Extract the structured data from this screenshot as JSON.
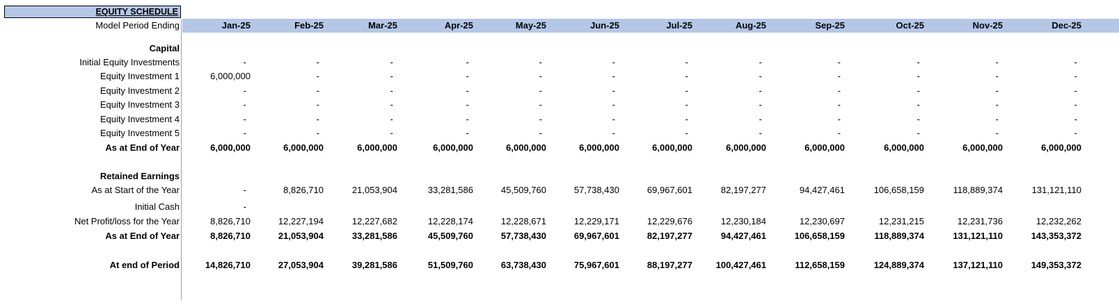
{
  "sheet": {
    "title": "EQUITY SCHEDULE",
    "header_label": "Model Period Ending",
    "months": [
      "Jan-25",
      "Feb-25",
      "Mar-25",
      "Apr-25",
      "May-25",
      "Jun-25",
      "Jul-25",
      "Aug-25",
      "Sep-25",
      "Oct-25",
      "Nov-25",
      "Dec-25"
    ],
    "capital_heading": "Capital",
    "rows": {
      "initial_equity": {
        "label": "Initial Equity Investments",
        "values": [
          "-",
          "-",
          "-",
          "-",
          "-",
          "-",
          "-",
          "-",
          "-",
          "-",
          "-",
          "-"
        ]
      },
      "equity1": {
        "label": "Equity Investment 1",
        "values": [
          "6,000,000",
          "-",
          "-",
          "-",
          "-",
          "-",
          "-",
          "-",
          "-",
          "-",
          "-",
          "-"
        ]
      },
      "equity2": {
        "label": "Equity Investment 2",
        "values": [
          "-",
          "-",
          "-",
          "-",
          "-",
          "-",
          "-",
          "-",
          "-",
          "-",
          "-",
          "-"
        ]
      },
      "equity3": {
        "label": "Equity Investment 3",
        "values": [
          "-",
          "-",
          "-",
          "-",
          "-",
          "-",
          "-",
          "-",
          "-",
          "-",
          "-",
          "-"
        ]
      },
      "equity4": {
        "label": "Equity Investment 4",
        "values": [
          "-",
          "-",
          "-",
          "-",
          "-",
          "-",
          "-",
          "-",
          "-",
          "-",
          "-",
          "-"
        ]
      },
      "equity5": {
        "label": "Equity Investment 5",
        "values": [
          "-",
          "-",
          "-",
          "-",
          "-",
          "-",
          "-",
          "-",
          "-",
          "-",
          "-",
          "-"
        ]
      },
      "capital_end": {
        "label": "As at End of Year",
        "values": [
          "6,000,000",
          "6,000,000",
          "6,000,000",
          "6,000,000",
          "6,000,000",
          "6,000,000",
          "6,000,000",
          "6,000,000",
          "6,000,000",
          "6,000,000",
          "6,000,000",
          "6,000,000"
        ]
      },
      "re_start": {
        "label": "As at Start of the Year",
        "values": [
          "-",
          "8,826,710",
          "21,053,904",
          "33,281,586",
          "45,509,760",
          "57,738,430",
          "69,967,601",
          "82,197,277",
          "94,427,461",
          "106,658,159",
          "118,889,374",
          "131,121,110"
        ]
      },
      "initial_cash": {
        "label": "Initial Cash",
        "values": [
          "-",
          "",
          "",
          "",
          "",
          "",
          "",
          "",
          "",
          "",
          "",
          ""
        ]
      },
      "net_profit": {
        "label": "Net Profit/loss for the Year",
        "values": [
          "8,826,710",
          "12,227,194",
          "12,227,682",
          "12,228,174",
          "12,228,671",
          "12,229,171",
          "12,229,676",
          "12,230,184",
          "12,230,697",
          "12,231,215",
          "12,231,736",
          "12,232,262"
        ]
      },
      "re_end": {
        "label": "As at End of Year",
        "values": [
          "8,826,710",
          "21,053,904",
          "33,281,586",
          "45,509,760",
          "57,738,430",
          "69,967,601",
          "82,197,277",
          "94,427,461",
          "106,658,159",
          "118,889,374",
          "131,121,110",
          "143,353,372"
        ]
      },
      "period_end": {
        "label": "At end of Period",
        "values": [
          "14,826,710",
          "27,053,904",
          "39,281,586",
          "51,509,760",
          "63,738,430",
          "75,967,601",
          "88,197,277",
          "100,427,461",
          "112,658,159",
          "124,889,374",
          "137,121,110",
          "149,353,372"
        ]
      }
    },
    "retained_heading": "Retained Earnings"
  },
  "colors": {
    "header_fill": "#b4c7e7",
    "grid_line": "#a0a0a0"
  }
}
